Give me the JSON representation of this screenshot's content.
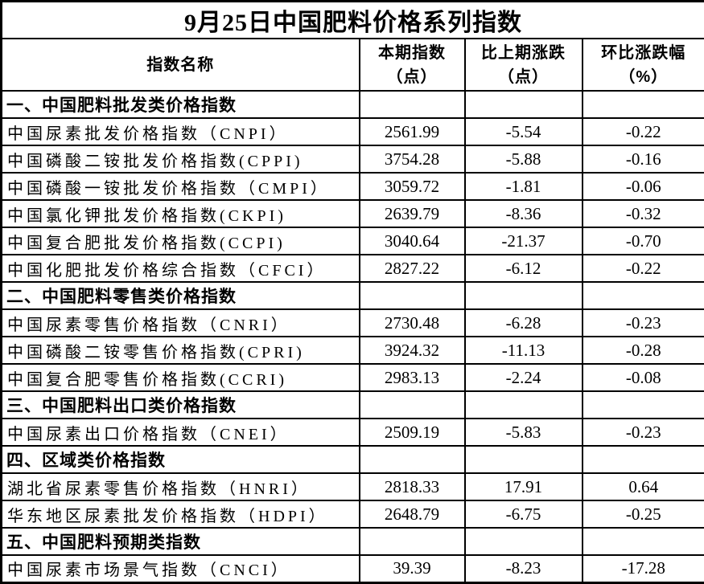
{
  "title": "9月25日中国肥料价格系列指数",
  "columns": {
    "name": "指数名称",
    "current": {
      "line1": "本期指数",
      "line2": "（点）"
    },
    "change": {
      "line1": "比上期涨跌",
      "line2": "（点）"
    },
    "pct": {
      "line1": "环比涨跌幅",
      "line2": "（%）"
    }
  },
  "rows": [
    {
      "type": "section",
      "name": "一、中国肥料批发类价格指数"
    },
    {
      "type": "data",
      "name": "中国尿素批发价格指数（CNPI）",
      "current": "2561.99",
      "change": "-5.54",
      "pct": "-0.22"
    },
    {
      "type": "data",
      "name": "中国磷酸二铵批发价格指数(CPPI)",
      "current": "3754.28",
      "change": "-5.88",
      "pct": "-0.16"
    },
    {
      "type": "data",
      "name": "中国磷酸一铵批发价格指数（CMPI）",
      "current": "3059.72",
      "change": "-1.81",
      "pct": "-0.06"
    },
    {
      "type": "data",
      "name": "中国氯化钾批发价格指数(CKPI)",
      "current": "2639.79",
      "change": "-8.36",
      "pct": "-0.32"
    },
    {
      "type": "data",
      "name": "中国复合肥批发价格指数(CCPI)",
      "current": "3040.64",
      "change": "-21.37",
      "pct": "-0.70"
    },
    {
      "type": "data",
      "name": "中国化肥批发价格综合指数（CFCI）",
      "current": "2827.22",
      "change": "-6.12",
      "pct": "-0.22"
    },
    {
      "type": "section",
      "name": "二、中国肥料零售类价格指数"
    },
    {
      "type": "data",
      "name": "中国尿素零售价格指数（CNRI）",
      "current": "2730.48",
      "change": "-6.28",
      "pct": "-0.23"
    },
    {
      "type": "data",
      "name": "中国磷酸二铵零售价格指数(CPRI)",
      "current": "3924.32",
      "change": "-11.13",
      "pct": "-0.28"
    },
    {
      "type": "data",
      "name": "中国复合肥零售价格指数(CCRI)",
      "current": "2983.13",
      "change": "-2.24",
      "pct": "-0.08"
    },
    {
      "type": "section",
      "name": "三、中国肥料出口类价格指数"
    },
    {
      "type": "data",
      "name": "中国尿素出口价格指数（CNEI）",
      "current": "2509.19",
      "change": "-5.83",
      "pct": "-0.23"
    },
    {
      "type": "section",
      "name": "四、区域类价格指数"
    },
    {
      "type": "data",
      "name": "湖北省尿素零售价格指数（HNRI）",
      "current": "2818.33",
      "change": "17.91",
      "pct": "0.64"
    },
    {
      "type": "data",
      "name": "华东地区尿素批发价格指数（HDPI）",
      "current": "2648.79",
      "change": "-6.75",
      "pct": "-0.25"
    },
    {
      "type": "section",
      "name": "五、中国肥料预期类指数"
    },
    {
      "type": "data",
      "name": "中国尿素市场景气指数（CNCI）",
      "current": "39.39",
      "change": "-8.23",
      "pct": "-17.28"
    }
  ]
}
